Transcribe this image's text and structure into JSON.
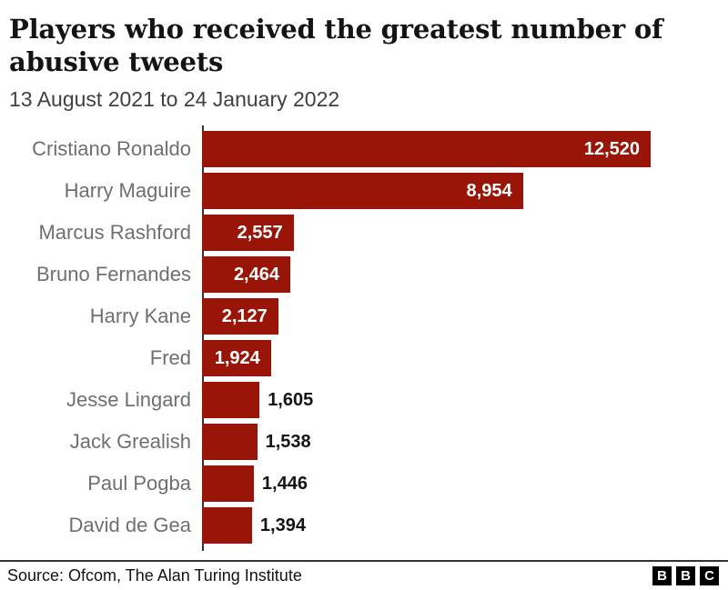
{
  "header": {
    "title": "Players who received the greatest number of abusive tweets",
    "subtitle": "13 August 2021 to 24 January 2022"
  },
  "chart_data": {
    "type": "bar",
    "orientation": "horizontal",
    "title": "Players who received the greatest number of abusive tweets",
    "subtitle": "13 August 2021 to 24 January 2022",
    "categories": [
      "Cristiano Ronaldo",
      "Harry Maguire",
      "Marcus Rashford",
      "Bruno Fernandes",
      "Harry Kane",
      "Fred",
      "Jesse Lingard",
      "Jack Grealish",
      "Paul Pogba",
      "David de Gea"
    ],
    "values": [
      12520,
      8954,
      2557,
      2464,
      2127,
      1924,
      1605,
      1538,
      1446,
      1394
    ],
    "value_labels": [
      "12,520",
      "8,954",
      "2,557",
      "2,464",
      "2,127",
      "1,924",
      "1,605",
      "1,538",
      "1,446",
      "1,394"
    ],
    "xlabel": "",
    "ylabel": "",
    "xlim": [
      0,
      12520
    ],
    "grid": false,
    "legend": false,
    "bar_color": "#991507",
    "category_label_color": "#6f6f73",
    "value_label_inside_color": "#ffffff",
    "value_label_outside_color": "#141414",
    "axis_color": "#333333"
  },
  "footer": {
    "source": "Source: Ofcom, The Alan Turing Institute",
    "logo_letters": [
      "B",
      "B",
      "C"
    ]
  }
}
